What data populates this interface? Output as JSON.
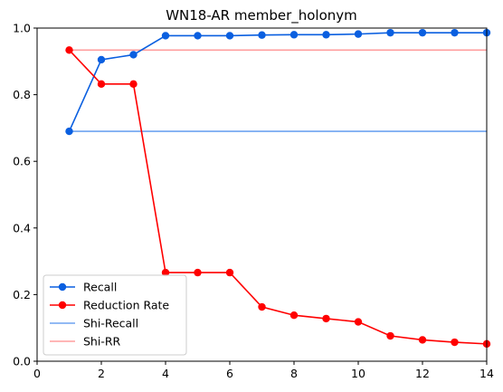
{
  "chart_data": {
    "type": "line",
    "title": "WN18-AR member_holonym",
    "xlabel": "",
    "ylabel": "",
    "xlim": [
      0,
      14
    ],
    "ylim": [
      0.0,
      1.0
    ],
    "x_ticks": [
      0,
      2,
      4,
      6,
      8,
      10,
      12,
      14
    ],
    "y_ticks": [
      0.0,
      0.2,
      0.4,
      0.6,
      0.8,
      1.0
    ],
    "x_tick_labels": [
      "0",
      "2",
      "4",
      "6",
      "8",
      "10",
      "12",
      "14"
    ],
    "y_tick_labels": [
      "0.0",
      "0.2",
      "0.4",
      "0.6",
      "0.8",
      "1.0"
    ],
    "grid": false,
    "legend_position": "lower-left",
    "x": [
      1,
      2,
      3,
      4,
      5,
      6,
      7,
      8,
      9,
      10,
      11,
      12,
      13,
      14
    ],
    "series": [
      {
        "name": "Recall",
        "color": "#0a5fe0",
        "marker": "circle",
        "values": [
          0.69,
          0.905,
          0.92,
          0.977,
          0.977,
          0.977,
          0.979,
          0.98,
          0.98,
          0.982,
          0.986,
          0.986,
          0.986,
          0.986
        ]
      },
      {
        "name": "Reduction Rate",
        "color": "#ff0000",
        "marker": "circle",
        "values": [
          0.934,
          0.832,
          0.832,
          0.266,
          0.266,
          0.266,
          0.163,
          0.138,
          0.128,
          0.118,
          0.076,
          0.064,
          0.057,
          0.052
        ]
      }
    ],
    "reference_lines": [
      {
        "name": "Shi-Recall",
        "color": "#6fa4f0",
        "value": 0.69,
        "x_range": [
          1,
          14
        ]
      },
      {
        "name": "Shi-RR",
        "color": "#ff9e9e",
        "value": 0.934,
        "x_range": [
          1,
          14
        ]
      }
    ]
  }
}
